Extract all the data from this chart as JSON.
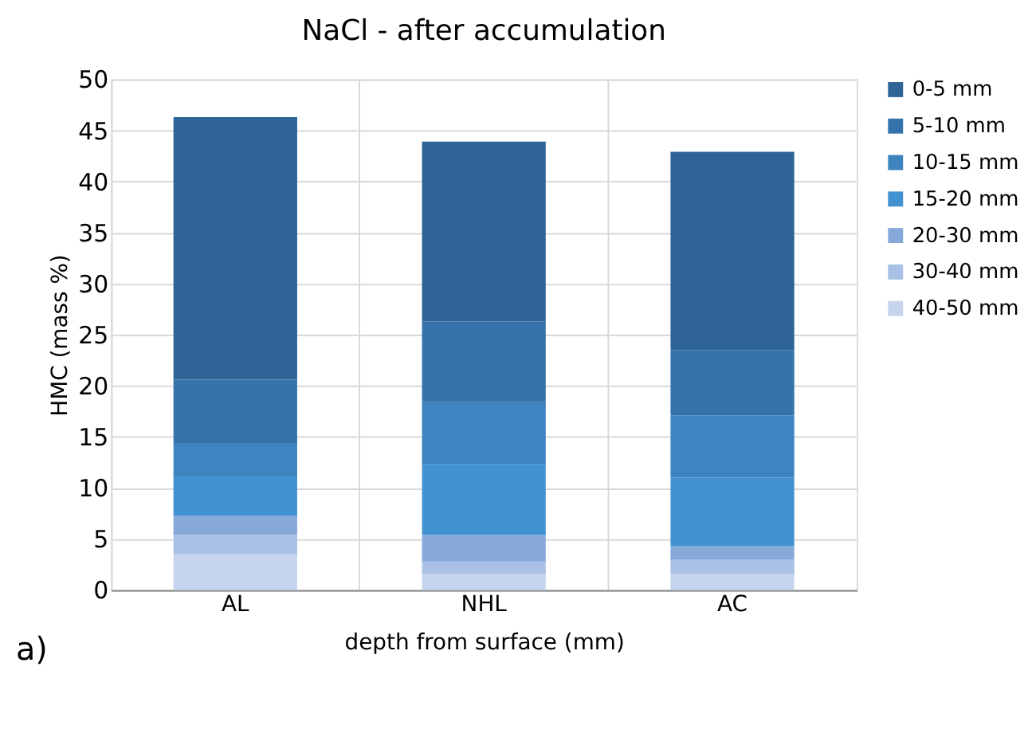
{
  "chart_data": {
    "type": "bar",
    "title": "NaCl - after accumulation",
    "xlabel": "depth from surface (mm)",
    "ylabel": "HMC (mass %)",
    "categories": [
      "AL",
      "NHL",
      "AC"
    ],
    "stacked": true,
    "series": [
      {
        "name": "40-50 mm",
        "color": "#c6d4ee",
        "values": [
          3.5,
          1.6,
          1.6
        ]
      },
      {
        "name": "30-40 mm",
        "color": "#a9c1e6",
        "values": [
          1.9,
          1.2,
          1.4
        ]
      },
      {
        "name": "20-30 mm",
        "color": "#86a9da",
        "values": [
          1.9,
          2.6,
          1.3
        ]
      },
      {
        "name": "15-20 mm",
        "color": "#4291d0",
        "values": [
          3.9,
          6.9,
          6.7
        ]
      },
      {
        "name": "10-15 mm",
        "color": "#3d84c0",
        "values": [
          3.2,
          6.1,
          6.1
        ]
      },
      {
        "name": "5-10 mm",
        "color": "#3673ab",
        "values": [
          6.2,
          7.9,
          6.4
        ]
      },
      {
        "name": "0-5 mm",
        "color": "#2e6496",
        "values": [
          25.7,
          17.6,
          19.4
        ]
      }
    ],
    "ylim": [
      0,
      50
    ],
    "yticks": [
      0,
      5,
      10,
      15,
      20,
      25,
      30,
      35,
      40,
      45,
      50
    ],
    "grid": true,
    "legend": "right",
    "annotations": [
      "a)"
    ]
  }
}
